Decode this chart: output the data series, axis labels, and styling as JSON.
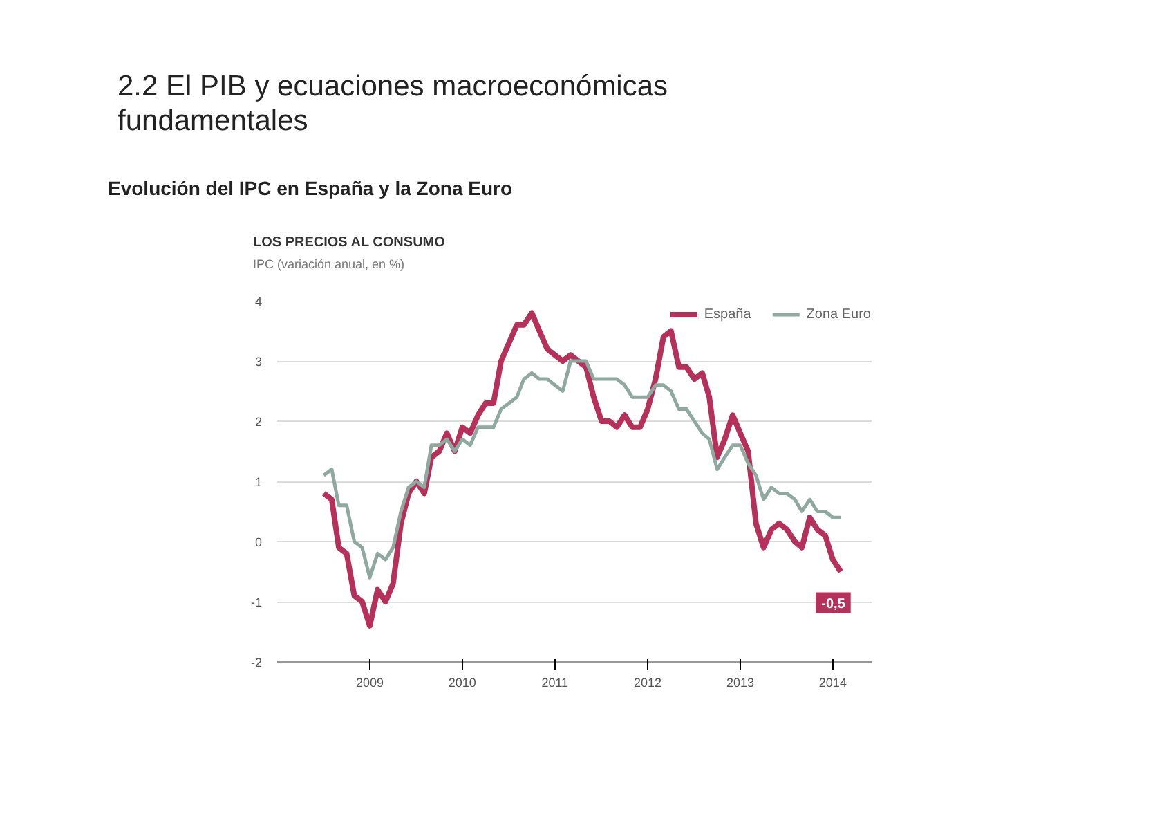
{
  "chart_data": {
    "type": "line",
    "title": "2.2 El PIB y ecuaciones macroeconómicas fundamentales",
    "subtitle": "Evolución del IPC en España y la Zona Euro",
    "annotations": [
      "LOS PRECIOS AL CONSUMO",
      "IPC (variación anual, en %)",
      {
        "text": "-0,5",
        "x": "2014-08",
        "y": -0.5
      }
    ],
    "x": [
      "2009-01",
      "2009-02",
      "2009-03",
      "2009-04",
      "2009-05",
      "2009-06",
      "2009-07",
      "2009-08",
      "2009-09",
      "2009-10",
      "2009-11",
      "2009-12",
      "2010-01",
      "2010-02",
      "2010-03",
      "2010-04",
      "2010-05",
      "2010-06",
      "2010-07",
      "2010-08",
      "2010-09",
      "2010-10",
      "2010-11",
      "2010-12",
      "2011-01",
      "2011-02",
      "2011-03",
      "2011-04",
      "2011-05",
      "2011-06",
      "2011-07",
      "2011-08",
      "2011-09",
      "2011-10",
      "2011-11",
      "2011-12",
      "2012-01",
      "2012-02",
      "2012-03",
      "2012-04",
      "2012-05",
      "2012-06",
      "2012-07",
      "2012-08",
      "2012-09",
      "2012-10",
      "2012-11",
      "2012-12",
      "2013-01",
      "2013-02",
      "2013-03",
      "2013-04",
      "2013-05",
      "2013-06",
      "2013-07",
      "2013-08",
      "2013-09",
      "2013-10",
      "2013-11",
      "2013-12",
      "2014-01",
      "2014-02",
      "2014-03",
      "2014-04",
      "2014-05",
      "2014-06",
      "2014-07",
      "2014-08"
    ],
    "series": [
      {
        "name": "España",
        "color": "#b5305a",
        "values": [
          0.8,
          0.7,
          -0.1,
          -0.2,
          -0.9,
          -1.0,
          -1.4,
          -0.8,
          -1.0,
          -0.7,
          0.3,
          0.8,
          1.0,
          0.8,
          1.4,
          1.5,
          1.8,
          1.5,
          1.9,
          1.8,
          2.1,
          2.3,
          2.3,
          3.0,
          3.3,
          3.6,
          3.6,
          3.8,
          3.5,
          3.2,
          3.1,
          3.0,
          3.1,
          3.0,
          2.9,
          2.4,
          2.0,
          2.0,
          1.9,
          2.1,
          1.9,
          1.9,
          2.2,
          2.7,
          3.4,
          3.5,
          2.9,
          2.9,
          2.7,
          2.8,
          2.4,
          1.4,
          1.7,
          2.1,
          1.8,
          1.5,
          0.3,
          -0.1,
          0.2,
          0.3,
          0.2,
          0.0,
          -0.1,
          0.4,
          0.2,
          0.1,
          -0.3,
          -0.5
        ]
      },
      {
        "name": "Zona Euro",
        "color": "#8fa8a0",
        "values": [
          1.1,
          1.2,
          0.6,
          0.6,
          0.0,
          -0.1,
          -0.6,
          -0.2,
          -0.3,
          -0.1,
          0.5,
          0.9,
          1.0,
          0.9,
          1.6,
          1.6,
          1.7,
          1.5,
          1.7,
          1.6,
          1.9,
          1.9,
          1.9,
          2.2,
          2.3,
          2.4,
          2.7,
          2.8,
          2.7,
          2.7,
          2.6,
          2.5,
          3.0,
          3.0,
          3.0,
          2.7,
          2.7,
          2.7,
          2.7,
          2.6,
          2.4,
          2.4,
          2.4,
          2.6,
          2.6,
          2.5,
          2.2,
          2.2,
          2.0,
          1.8,
          1.7,
          1.2,
          1.4,
          1.6,
          1.6,
          1.3,
          1.1,
          0.7,
          0.9,
          0.8,
          0.8,
          0.7,
          0.5,
          0.7,
          0.5,
          0.5,
          0.4,
          0.4
        ]
      }
    ],
    "xlim": [
      "2008-07",
      "2014-12"
    ],
    "xticks": [
      {
        "value": "2009-07",
        "label": "2009"
      },
      {
        "value": "2010-07",
        "label": "2010"
      },
      {
        "value": "2011-07",
        "label": "2011"
      },
      {
        "value": "2012-07",
        "label": "2012"
      },
      {
        "value": "2013-07",
        "label": "2013"
      },
      {
        "value": "2014-07",
        "label": "2014"
      }
    ],
    "ylim": [
      -2,
      4
    ],
    "yticks": [
      -2,
      -1,
      0,
      1,
      2,
      3,
      4
    ],
    "grid": "y",
    "legend": "top right",
    "marker": "none",
    "line_style": "solid"
  }
}
